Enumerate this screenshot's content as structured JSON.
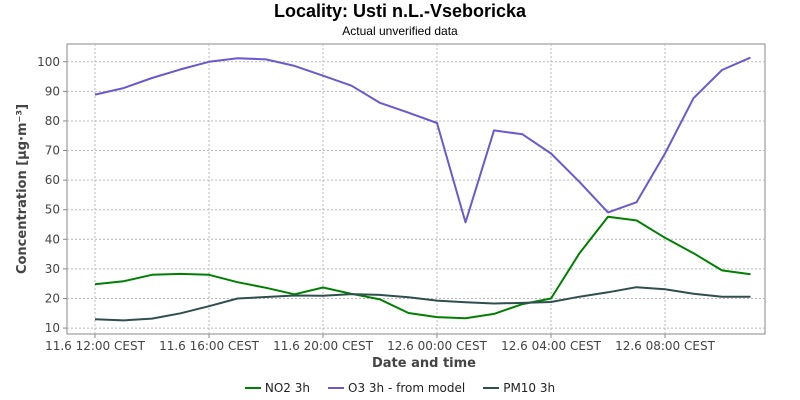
{
  "chart_data": {
    "type": "line",
    "title": "Locality: Usti n.L.-Vseboricka",
    "subtitle": "Actual unverified data",
    "xlabel": "Date and time",
    "ylabel": "Concentration [µg·m⁻³]",
    "ylim": [
      8,
      106
    ],
    "yticks": [
      10,
      20,
      30,
      40,
      50,
      60,
      70,
      80,
      90,
      100
    ],
    "x": [
      "11.6 12:00 CEST",
      "11.6 13:00 CEST",
      "11.6 14:00 CEST",
      "11.6 15:00 CEST",
      "11.6 16:00 CEST",
      "11.6 17:00 CEST",
      "11.6 18:00 CEST",
      "11.6 19:00 CEST",
      "11.6 20:00 CEST",
      "11.6 21:00 CEST",
      "11.6 22:00 CEST",
      "11.6 23:00 CEST",
      "12.6 00:00 CEST",
      "12.6 01:00 CEST",
      "12.6 02:00 CEST",
      "12.6 03:00 CEST",
      "12.6 04:00 CEST",
      "12.6 05:00 CEST",
      "12.6 06:00 CEST",
      "12.6 07:00 CEST",
      "12.6 08:00 CEST",
      "12.6 09:00 CEST",
      "12.6 10:00 CEST",
      "12.6 11:00 CEST"
    ],
    "xticks": [
      "11.6 12:00 CEST",
      "11.6 16:00 CEST",
      "11.6 20:00 CEST",
      "12.6 00:00 CEST",
      "12.6 04:00 CEST",
      "12.6 08:00 CEST"
    ],
    "grid": true,
    "legend_position": "bottom",
    "series": [
      {
        "name": "NO2 3h",
        "color": "#008000",
        "values": [
          24.8,
          25.8,
          28.0,
          28.3,
          28.0,
          25.5,
          23.6,
          21.4,
          23.7,
          21.6,
          19.7,
          15.1,
          13.7,
          13.3,
          14.8,
          18.1,
          20.0,
          35.3,
          47.6,
          46.4,
          40.5,
          35.3,
          29.5,
          28.2
        ]
      },
      {
        "name": "O3 3h - from model",
        "color": "#6a5acd",
        "values": [
          88.9,
          91.1,
          94.5,
          97.4,
          100.0,
          101.2,
          100.8,
          98.6,
          95.3,
          91.9,
          86.1,
          82.8,
          79.3,
          45.7,
          76.8,
          75.5,
          69.0,
          59.4,
          49.1,
          52.5,
          69.0,
          87.7,
          97.2,
          101.4
        ]
      },
      {
        "name": "PM10 3h",
        "color": "#2f4f4f",
        "values": [
          13.0,
          12.6,
          13.2,
          15.0,
          17.4,
          20.0,
          20.5,
          21.0,
          20.9,
          21.5,
          21.2,
          20.4,
          19.3,
          18.7,
          18.3,
          18.5,
          18.8,
          20.6,
          22.1,
          23.8,
          23.1,
          21.6,
          20.6,
          20.6
        ]
      }
    ]
  }
}
